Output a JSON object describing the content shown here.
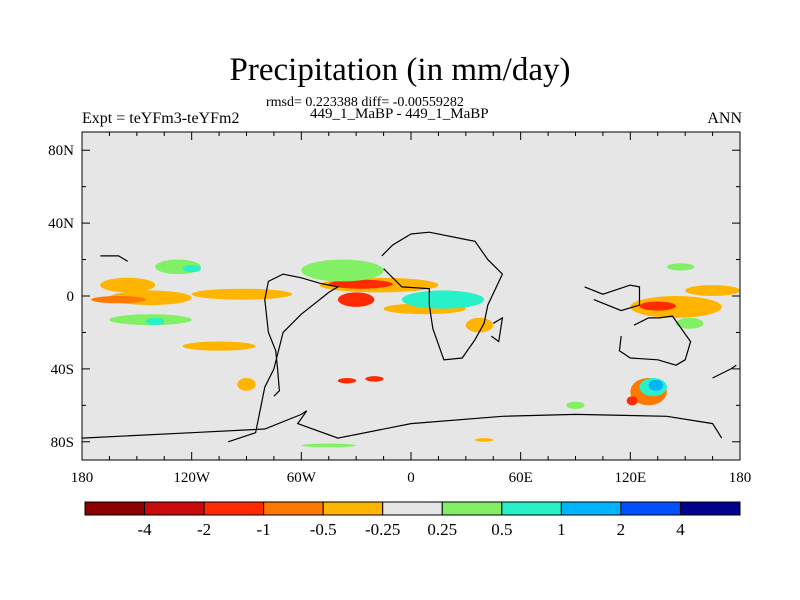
{
  "chart_data": {
    "type": "heatmap",
    "title": "Precipitation (in mm/day)",
    "subtitle_stats": "rmsd= 0.223388 diff= -0.00559282",
    "subtitle_cases": "449_1_MaBP - 449_1_MaBP",
    "left_label": "Expt = teYFm3-teYFm2",
    "right_label": "ANN",
    "x_axis": {
      "range": [
        -180,
        180
      ],
      "ticks": [
        -180,
        -120,
        -60,
        0,
        60,
        120,
        180
      ],
      "tick_labels": [
        "180",
        "120W",
        "60W",
        "0",
        "60E",
        "120E",
        "180"
      ]
    },
    "y_axis": {
      "range": [
        -90,
        90
      ],
      "ticks": [
        80,
        40,
        0,
        -40,
        -80
      ],
      "tick_labels": [
        "80N",
        "40N",
        "0",
        "40S",
        "80S"
      ]
    },
    "colorbar": {
      "levels": [
        -4,
        -2,
        -1,
        -0.5,
        -0.25,
        0.25,
        0.5,
        1,
        2,
        4
      ],
      "labels": [
        "-4",
        "-2",
        "-1",
        "-0.5",
        "-0.25",
        "0.25",
        "0.5",
        "1",
        "2",
        "4"
      ],
      "colors": [
        "#8b0000",
        "#c80a0a",
        "#ff2a00",
        "#ff7800",
        "#ffb400",
        "#e6e6e6",
        "#82f064",
        "#28f0c8",
        "#00b4ff",
        "#0050ff",
        "#00008c"
      ]
    },
    "background_color": "#e6e6e6",
    "anomaly_regions": [
      {
        "lon": [
          -170,
          -140
        ],
        "lat": [
          2,
          10
        ],
        "value": -0.4
      },
      {
        "lon": [
          -165,
          -120
        ],
        "lat": [
          -5,
          3
        ],
        "value": -0.35
      },
      {
        "lon": [
          -120,
          -65
        ],
        "lat": [
          -2,
          4
        ],
        "value": -0.3
      },
      {
        "lon": [
          -175,
          -145
        ],
        "lat": [
          -4,
          0
        ],
        "value": -0.7
      },
      {
        "lon": [
          -50,
          15
        ],
        "lat": [
          2,
          10
        ],
        "value": -0.4
      },
      {
        "lon": [
          -45,
          -10
        ],
        "lat": [
          4,
          9
        ],
        "value": -1.5
      },
      {
        "lon": [
          -40,
          -20
        ],
        "lat": [
          -6,
          2
        ],
        "value": -1.2
      },
      {
        "lon": [
          -15,
          30
        ],
        "lat": [
          -10,
          -4
        ],
        "value": -0.35
      },
      {
        "lon": [
          -5,
          40
        ],
        "lat": [
          -7,
          3
        ],
        "value": 0.6
      },
      {
        "lon": [
          0,
          30
        ],
        "lat": [
          -4,
          0
        ],
        "value": 0.9
      },
      {
        "lon": [
          -140,
          -115
        ],
        "lat": [
          12,
          20
        ],
        "value": 0.4
      },
      {
        "lon": [
          -125,
          -115
        ],
        "lat": [
          13,
          17
        ],
        "value": 0.7
      },
      {
        "lon": [
          -60,
          -15
        ],
        "lat": [
          8,
          20
        ],
        "value": 0.35
      },
      {
        "lon": [
          120,
          170
        ],
        "lat": [
          -12,
          0
        ],
        "value": -0.4
      },
      {
        "lon": [
          125,
          145
        ],
        "lat": [
          -8,
          -3
        ],
        "value": -1.3
      },
      {
        "lon": [
          150,
          180
        ],
        "lat": [
          0,
          6
        ],
        "value": -0.4
      },
      {
        "lon": [
          -165,
          -120
        ],
        "lat": [
          -16,
          -10
        ],
        "value": 0.35
      },
      {
        "lon": [
          -145,
          -135
        ],
        "lat": [
          -16,
          -12
        ],
        "value": 0.7
      },
      {
        "lon": [
          -125,
          -85
        ],
        "lat": [
          -30,
          -25
        ],
        "value": -0.35
      },
      {
        "lon": [
          120,
          140
        ],
        "lat": [
          -60,
          -45
        ],
        "value": -0.8
      },
      {
        "lon": [
          125,
          140
        ],
        "lat": [
          -55,
          -45
        ],
        "value": 0.9
      },
      {
        "lon": [
          130,
          138
        ],
        "lat": [
          -52,
          -46
        ],
        "value": 1.5
      },
      {
        "lon": [
          118,
          124
        ],
        "lat": [
          -60,
          -55
        ],
        "value": -1.5
      },
      {
        "lon": [
          -25,
          -15
        ],
        "lat": [
          -47,
          -44
        ],
        "value": -1.2
      },
      {
        "lon": [
          -40,
          -30
        ],
        "lat": [
          -48,
          -45
        ],
        "value": -1.2
      },
      {
        "lon": [
          -95,
          -85
        ],
        "lat": [
          -52,
          -45
        ],
        "value": -0.4
      },
      {
        "lon": [
          30,
          45
        ],
        "lat": [
          -20,
          -12
        ],
        "value": -0.5
      },
      {
        "lon": [
          140,
          155
        ],
        "lat": [
          14,
          18
        ],
        "value": 0.35
      },
      {
        "lon": [
          145,
          160
        ],
        "lat": [
          -18,
          -12
        ],
        "value": 0.35
      },
      {
        "lon": [
          35,
          45
        ],
        "lat": [
          -80,
          -78
        ],
        "value": -0.35
      },
      {
        "lon": [
          -60,
          -30
        ],
        "lat": [
          -83,
          -81
        ],
        "value": 0.35
      },
      {
        "lon": [
          85,
          95
        ],
        "lat": [
          -62,
          -58
        ],
        "value": 0.35
      }
    ],
    "land_outlines": [
      [
        [
          -100,
          -80
        ],
        [
          -85,
          -75
        ],
        [
          -80,
          -50
        ],
        [
          -75,
          -40
        ],
        [
          -70,
          -20
        ],
        [
          -60,
          -10
        ],
        [
          -45,
          2
        ],
        [
          -40,
          5
        ],
        [
          -50,
          7
        ],
        [
          -60,
          10
        ],
        [
          -70,
          12
        ],
        [
          -78,
          8
        ],
        [
          -80,
          -2
        ],
        [
          -78,
          -20
        ],
        [
          -74,
          -30
        ],
        [
          -73,
          -40
        ],
        [
          -72,
          -52
        ],
        [
          -75,
          -55
        ]
      ],
      [
        [
          -15,
          15
        ],
        [
          -5,
          5
        ],
        [
          10,
          4
        ],
        [
          10,
          -5
        ],
        [
          12,
          -18
        ],
        [
          18,
          -35
        ],
        [
          28,
          -34
        ],
        [
          35,
          -24
        ],
        [
          40,
          -15
        ],
        [
          42,
          -5
        ],
        [
          50,
          12
        ],
        [
          42,
          20
        ],
        [
          35,
          30
        ],
        [
          30,
          31
        ],
        [
          10,
          35
        ],
        [
          0,
          34
        ],
        [
          -10,
          28
        ],
        [
          -16,
          22
        ]
      ],
      [
        [
          115,
          -22
        ],
        [
          114,
          -30
        ],
        [
          120,
          -34
        ],
        [
          135,
          -35
        ],
        [
          145,
          -38
        ],
        [
          150,
          -35
        ],
        [
          153,
          -25
        ],
        [
          143,
          -11
        ],
        [
          136,
          -12
        ],
        [
          130,
          -12
        ],
        [
          122,
          -16
        ]
      ],
      [
        [
          -180,
          -78
        ],
        [
          -120,
          -75
        ],
        [
          -80,
          -73
        ],
        [
          -60,
          -65
        ],
        [
          -57,
          -63
        ],
        [
          -62,
          -70
        ],
        [
          -40,
          -78
        ],
        [
          0,
          -70
        ],
        [
          50,
          -66
        ],
        [
          90,
          -65
        ],
        [
          140,
          -66
        ],
        [
          165,
          -70
        ],
        [
          170,
          -78
        ]
      ],
      [
        [
          95,
          5
        ],
        [
          105,
          1
        ],
        [
          120,
          6
        ],
        [
          125,
          5
        ],
        [
          125,
          -5
        ],
        [
          115,
          -8
        ],
        [
          100,
          -2
        ]
      ],
      [
        [
          -170,
          22
        ],
        [
          -160,
          22
        ],
        [
          -155,
          19
        ]
      ],
      [
        [
          165,
          -45
        ],
        [
          175,
          -40
        ],
        [
          178,
          -38
        ]
      ],
      [
        [
          45,
          -15
        ],
        [
          50,
          -12
        ],
        [
          48,
          -25
        ],
        [
          44,
          -22
        ]
      ]
    ]
  }
}
